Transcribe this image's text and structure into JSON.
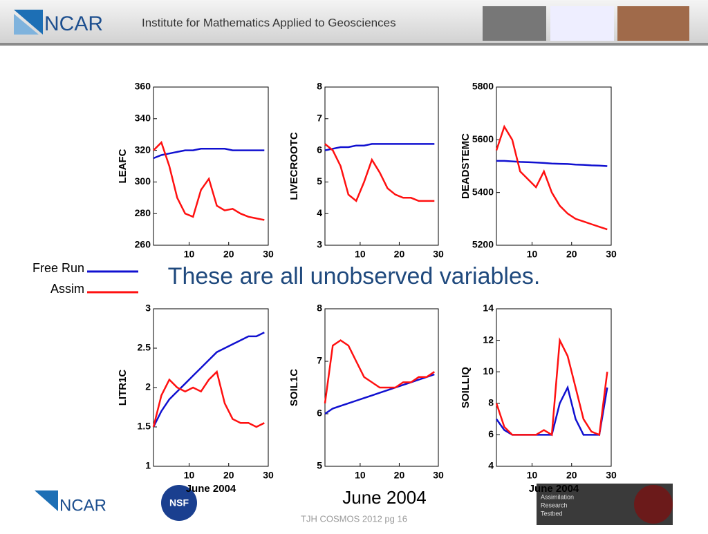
{
  "header": {
    "logo": "NCAR",
    "title": "Institute for Mathematics Applied to Geosciences"
  },
  "chart_data": [
    {
      "type": "line",
      "ylabel": "LEAFC",
      "x": [
        1,
        3,
        5,
        7,
        9,
        11,
        13,
        15,
        17,
        19,
        21,
        23,
        25,
        27,
        29
      ],
      "xlim": [
        1,
        30
      ],
      "xticks": [
        10,
        20,
        30
      ],
      "ylim": [
        260,
        360
      ],
      "yticks": [
        260,
        280,
        300,
        320,
        340,
        360
      ],
      "series": [
        {
          "name": "Free Run",
          "color": "#1010d0",
          "values": [
            315,
            317,
            318,
            319,
            320,
            320,
            321,
            321,
            321,
            321,
            320,
            320,
            320,
            320,
            320
          ]
        },
        {
          "name": "Assim",
          "color": "#ff1010",
          "values": [
            320,
            325,
            310,
            290,
            280,
            278,
            295,
            302,
            285,
            282,
            283,
            280,
            278,
            277,
            276
          ]
        }
      ]
    },
    {
      "type": "line",
      "ylabel": "LIVECROOTC",
      "x": [
        1,
        3,
        5,
        7,
        9,
        11,
        13,
        15,
        17,
        19,
        21,
        23,
        25,
        27,
        29
      ],
      "xlim": [
        1,
        30
      ],
      "xticks": [
        10,
        20,
        30
      ],
      "ylim": [
        3,
        8
      ],
      "yticks": [
        3,
        4,
        5,
        6,
        7,
        8
      ],
      "series": [
        {
          "name": "Free Run",
          "color": "#1010d0",
          "values": [
            6.0,
            6.05,
            6.1,
            6.1,
            6.15,
            6.15,
            6.2,
            6.2,
            6.2,
            6.2,
            6.2,
            6.2,
            6.2,
            6.2,
            6.2
          ]
        },
        {
          "name": "Assim",
          "color": "#ff1010",
          "values": [
            6.2,
            6.0,
            5.5,
            4.6,
            4.4,
            5.0,
            5.7,
            5.3,
            4.8,
            4.6,
            4.5,
            4.5,
            4.4,
            4.4,
            4.4
          ]
        }
      ]
    },
    {
      "type": "line",
      "ylabel": "DEADSTEMC",
      "x": [
        1,
        3,
        5,
        7,
        9,
        11,
        13,
        15,
        17,
        19,
        21,
        23,
        25,
        27,
        29
      ],
      "xlim": [
        1,
        30
      ],
      "xticks": [
        10,
        20,
        30
      ],
      "ylim": [
        5200,
        5800
      ],
      "yticks": [
        5200,
        5400,
        5600,
        5800
      ],
      "series": [
        {
          "name": "Free Run",
          "color": "#1010d0",
          "values": [
            5520,
            5520,
            5518,
            5516,
            5515,
            5514,
            5512,
            5510,
            5509,
            5508,
            5506,
            5505,
            5503,
            5502,
            5500
          ]
        },
        {
          "name": "Assim",
          "color": "#ff1010",
          "values": [
            5560,
            5650,
            5600,
            5480,
            5450,
            5420,
            5480,
            5400,
            5350,
            5320,
            5300,
            5290,
            5280,
            5270,
            5260
          ]
        }
      ]
    },
    {
      "type": "line",
      "ylabel": "LITR1C",
      "xlabel": "June 2004",
      "x": [
        1,
        3,
        5,
        7,
        9,
        11,
        13,
        15,
        17,
        19,
        21,
        23,
        25,
        27,
        29
      ],
      "xlim": [
        1,
        30
      ],
      "xticks": [
        10,
        20,
        30
      ],
      "ylim": [
        1,
        3
      ],
      "yticks": [
        1,
        1.5,
        2,
        2.5,
        3
      ],
      "series": [
        {
          "name": "Free Run",
          "color": "#1010d0",
          "values": [
            1.5,
            1.7,
            1.85,
            1.95,
            2.05,
            2.15,
            2.25,
            2.35,
            2.45,
            2.5,
            2.55,
            2.6,
            2.65,
            2.65,
            2.7
          ]
        },
        {
          "name": "Assim",
          "color": "#ff1010",
          "values": [
            1.5,
            1.9,
            2.1,
            2.0,
            1.95,
            2.0,
            1.95,
            2.1,
            2.2,
            1.8,
            1.6,
            1.55,
            1.55,
            1.5,
            1.55
          ]
        }
      ]
    },
    {
      "type": "line",
      "ylabel": "SOIL1C",
      "x": [
        1,
        3,
        5,
        7,
        9,
        11,
        13,
        15,
        17,
        19,
        21,
        23,
        25,
        27,
        29
      ],
      "xlim": [
        1,
        30
      ],
      "xticks": [
        10,
        20,
        30
      ],
      "ylim": [
        5,
        8
      ],
      "yticks": [
        5,
        6,
        7,
        8
      ],
      "series": [
        {
          "name": "Free Run",
          "color": "#1010d0",
          "values": [
            6.0,
            6.1,
            6.15,
            6.2,
            6.25,
            6.3,
            6.35,
            6.4,
            6.45,
            6.5,
            6.55,
            6.6,
            6.65,
            6.7,
            6.75
          ]
        },
        {
          "name": "Assim",
          "color": "#ff1010",
          "values": [
            6.2,
            7.3,
            7.4,
            7.3,
            7.0,
            6.7,
            6.6,
            6.5,
            6.5,
            6.5,
            6.6,
            6.6,
            6.7,
            6.7,
            6.8
          ]
        }
      ]
    },
    {
      "type": "line",
      "ylabel": "SOILLIQ",
      "xlabel": "June 2004",
      "x": [
        1,
        3,
        5,
        7,
        9,
        11,
        13,
        15,
        17,
        19,
        21,
        23,
        25,
        27,
        29
      ],
      "xlim": [
        1,
        30
      ],
      "xticks": [
        10,
        20,
        30
      ],
      "ylim": [
        4,
        14
      ],
      "yticks": [
        4,
        6,
        8,
        10,
        12,
        14
      ],
      "series": [
        {
          "name": "Free Run",
          "color": "#1010d0",
          "values": [
            7,
            6.3,
            6,
            6,
            6,
            6,
            6,
            6,
            8,
            9,
            7,
            6,
            6,
            6,
            9
          ]
        },
        {
          "name": "Assim",
          "color": "#ff1010",
          "values": [
            8,
            6.5,
            6,
            6,
            6,
            6,
            6.3,
            6,
            12,
            11,
            9,
            7,
            6.2,
            6,
            10
          ]
        }
      ]
    }
  ],
  "slide_text": "These are all unobserved variables.",
  "caption": "June 2004",
  "footer": "TJH COSMOS 2012 pg 16",
  "logos": {
    "ncar": "NCAR",
    "nsf": "NSF",
    "dart": [
      "Assimilation",
      "Research",
      "Testbed"
    ]
  }
}
